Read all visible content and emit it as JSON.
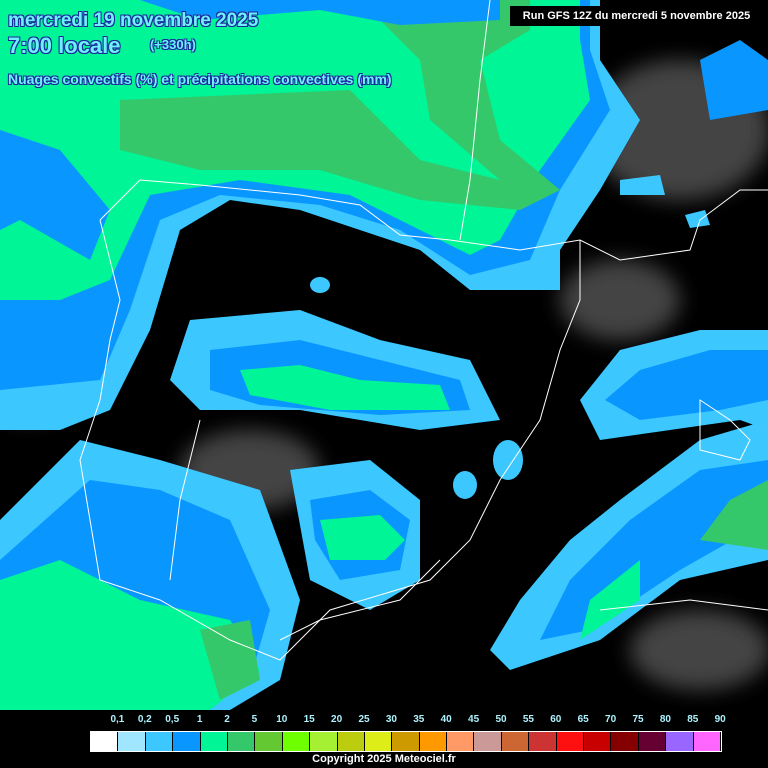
{
  "header": {
    "date": "mercredi 19 novembre 2025",
    "hour": "7:00 locale",
    "lead": "(+330h)",
    "parameter": "Nuages convectifs (%) et précipitations convectives (mm)",
    "run": "Run GFS 12Z du mercredi 5 novembre 2025"
  },
  "legend": {
    "labels": [
      "0,1",
      "0,2",
      "0,5",
      "1",
      "2",
      "5",
      "10",
      "15",
      "20",
      "25",
      "30",
      "35",
      "40",
      "45",
      "50",
      "55",
      "60",
      "65",
      "70",
      "75",
      "80",
      "85",
      "90"
    ],
    "colors": [
      "#ffffff",
      "#a0e6ff",
      "#3cc8ff",
      "#0a96ff",
      "#00f596",
      "#35c86a",
      "#64c832",
      "#6eff00",
      "#a5f032",
      "#bccd10",
      "#dced18",
      "#cd9a00",
      "#ff9900",
      "#ff9966",
      "#cc9999",
      "#cc6633",
      "#cc3333",
      "#ff1010",
      "#c80000",
      "#850000",
      "#660033",
      "#9966ff",
      "#ff66ff"
    ]
  },
  "copyright": "Copyright 2025 Meteociel.fr"
}
